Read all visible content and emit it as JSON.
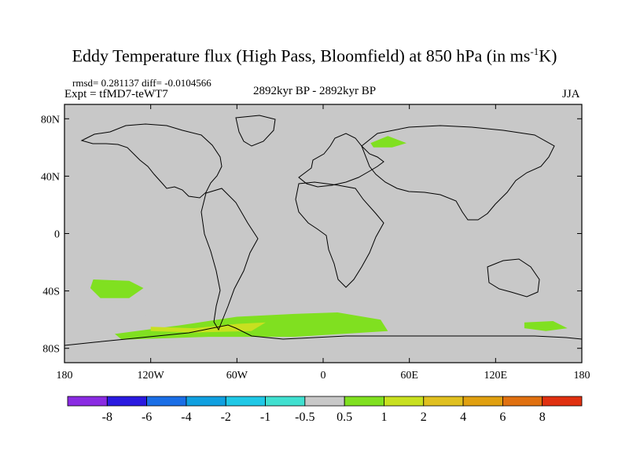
{
  "title": {
    "main": "Eddy Temperature flux (High Pass, Bloomfield) at 850 hPa (in ms",
    "superscript": "-1",
    "unit_tail": "K)"
  },
  "stats_line": "rmsd= 0.281137 diff= -0.0104566",
  "experiment": "Expt = tfMD7-teWT7",
  "period": "2892kyr BP - 2892kyr BP",
  "season": "JJA",
  "chart_data": {
    "type": "map",
    "projection": "cylindrical-equidistant",
    "lon_range": [
      -180,
      180
    ],
    "lat_range": [
      -90,
      90
    ],
    "x_ticks": [
      {
        "lon": -180,
        "label": "180"
      },
      {
        "lon": -120,
        "label": "120W"
      },
      {
        "lon": -60,
        "label": "60W"
      },
      {
        "lon": 0,
        "label": "0"
      },
      {
        "lon": 60,
        "label": "60E"
      },
      {
        "lon": 120,
        "label": "120E"
      },
      {
        "lon": 180,
        "label": "180"
      }
    ],
    "y_ticks": [
      {
        "lat": 80,
        "label": "80N"
      },
      {
        "lat": 40,
        "label": "40N"
      },
      {
        "lat": 0,
        "label": "0"
      },
      {
        "lat": -40,
        "label": "40S"
      },
      {
        "lat": -80,
        "label": "80S"
      }
    ],
    "colorbar": {
      "colors": [
        "#8a2be2",
        "#2a1ae0",
        "#1a6ee6",
        "#10a0e0",
        "#20c8e6",
        "#40e0d0",
        "#c8c8c8",
        "#80e020",
        "#c8e020",
        "#e0c020",
        "#e0a010",
        "#e07010",
        "#e03010"
      ],
      "labels": [
        "-8",
        "-6",
        "-4",
        "-2",
        "-1",
        "-0.5",
        "0.5",
        "1",
        "2",
        "4",
        "6",
        "8"
      ]
    },
    "regions": [
      {
        "name": "north-atlantic-negative",
        "level": -0.5,
        "points": [
          [
            -75,
            47
          ],
          [
            -68,
            50
          ],
          [
            -58,
            47
          ],
          [
            -55,
            43
          ],
          [
            -62,
            39
          ],
          [
            -72,
            37
          ],
          [
            -82,
            42
          ]
        ]
      },
      {
        "name": "greenland-negative",
        "level": -0.5,
        "points": [
          [
            -52,
            66
          ],
          [
            -43,
            69
          ],
          [
            -33,
            67
          ],
          [
            -36,
            61
          ],
          [
            -47,
            60
          ]
        ]
      },
      {
        "name": "mediterranean-negative",
        "level": -0.5,
        "points": [
          [
            -10,
            42
          ],
          [
            5,
            44
          ],
          [
            20,
            43
          ],
          [
            30,
            38
          ],
          [
            20,
            33
          ],
          [
            5,
            33
          ],
          [
            -8,
            36
          ]
        ]
      },
      {
        "name": "north-pacific-negative",
        "level": -0.5,
        "points": [
          [
            128,
            58
          ],
          [
            140,
            60
          ],
          [
            147,
            54
          ],
          [
            138,
            50
          ],
          [
            128,
            52
          ]
        ]
      },
      {
        "name": "south-pacific-negative",
        "level": -0.5,
        "points": [
          [
            -180,
            -40
          ],
          [
            -155,
            -40
          ],
          [
            -130,
            -47
          ],
          [
            -120,
            -55
          ],
          [
            -130,
            -62
          ],
          [
            -180,
            -62
          ]
        ]
      },
      {
        "name": "south-indian-negative",
        "level": -0.5,
        "points": [
          [
            117,
            -43
          ],
          [
            150,
            -40
          ],
          [
            180,
            -42
          ],
          [
            180,
            -57
          ],
          [
            150,
            -58
          ],
          [
            118,
            -55
          ]
        ]
      },
      {
        "name": "subantarctic-negative",
        "level": -0.5,
        "points": [
          [
            -180,
            -63
          ],
          [
            -160,
            -64
          ],
          [
            -140,
            -69
          ],
          [
            -150,
            -72
          ],
          [
            -180,
            -72
          ]
        ]
      },
      {
        "name": "south-pacific-positive",
        "level": 0.75,
        "points": [
          [
            -160,
            -32
          ],
          [
            -135,
            -33
          ],
          [
            -125,
            -38
          ],
          [
            -135,
            -45
          ],
          [
            -155,
            -45
          ],
          [
            -162,
            -38
          ]
        ]
      },
      {
        "name": "scandinavia-positive",
        "level": 0.75,
        "points": [
          [
            33,
            63
          ],
          [
            45,
            68
          ],
          [
            58,
            63
          ],
          [
            48,
            60
          ],
          [
            35,
            60
          ]
        ]
      },
      {
        "name": "antarctic-ring-positive",
        "level": 0.75,
        "points": [
          [
            -145,
            -70
          ],
          [
            -100,
            -64
          ],
          [
            -60,
            -58
          ],
          [
            -20,
            -56
          ],
          [
            10,
            -55
          ],
          [
            40,
            -60
          ],
          [
            45,
            -68
          ],
          [
            -20,
            -72
          ],
          [
            -80,
            -72
          ],
          [
            -140,
            -74
          ]
        ]
      },
      {
        "name": "australia-positive",
        "level": 0.75,
        "points": [
          [
            140,
            -62
          ],
          [
            160,
            -61
          ],
          [
            170,
            -66
          ],
          [
            155,
            -68
          ],
          [
            140,
            -66
          ]
        ]
      },
      {
        "name": "antarctic-yellow",
        "level": 1.5,
        "points": [
          [
            -120,
            -65
          ],
          [
            -90,
            -66
          ],
          [
            -60,
            -63
          ],
          [
            -40,
            -62
          ],
          [
            -50,
            -68
          ],
          [
            -90,
            -69
          ],
          [
            -120,
            -68
          ]
        ]
      }
    ]
  }
}
